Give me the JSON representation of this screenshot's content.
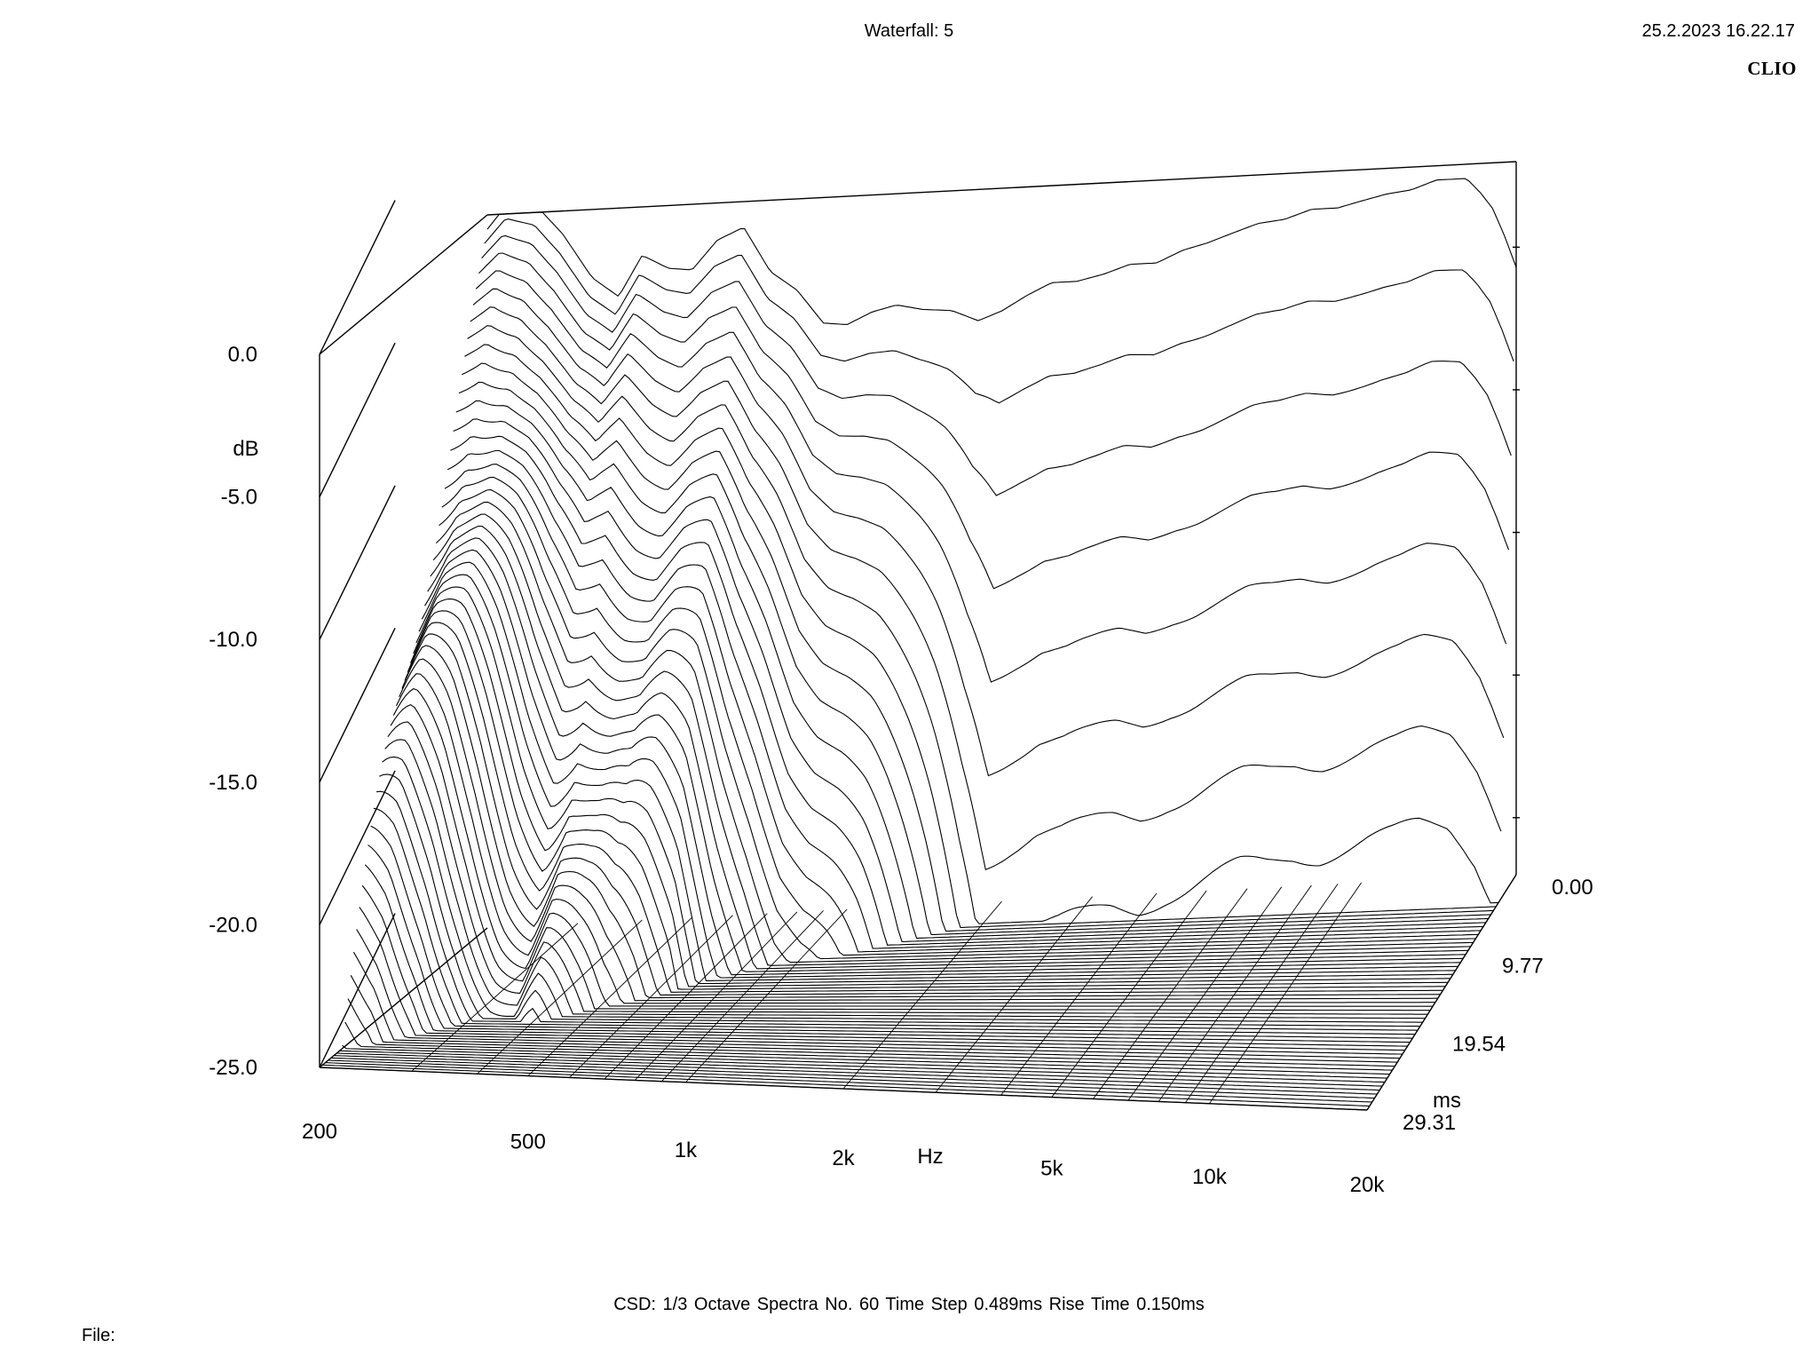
{
  "header": {
    "title": "Waterfall: 5",
    "datetime": "25.2.2023 16.22.17",
    "brand": "CLIO"
  },
  "footer": {
    "settings": "CSD:   1/3 Octave   Spectra No. 60   Time Step 0.489ms   Rise Time 0.150ms",
    "file_label": "File:"
  },
  "chart_data": {
    "type": "waterfall",
    "title": "Waterfall: 5",
    "xlabel": "Hz",
    "ylabel": "dB",
    "zlabel": "ms",
    "x_scale": "log",
    "x_ticks": [
      "200",
      "500",
      "1k",
      "2k",
      "5k",
      "10k",
      "20k"
    ],
    "x_tick_values": [
      200,
      500,
      1000,
      2000,
      5000,
      10000,
      20000
    ],
    "xlim": [
      200,
      20000
    ],
    "y_ticks": [
      "0.0",
      "-5.0",
      "-10.0",
      "-15.0",
      "-20.0",
      "-25.0"
    ],
    "ylim": [
      -25,
      0
    ],
    "z_ticks": [
      "0.00",
      "9.77",
      "19.54",
      "29.31"
    ],
    "zlim": [
      0,
      29.31
    ],
    "spectra_count": 60,
    "time_step_ms": 0.489,
    "rise_time_ms": 0.15,
    "smoothing": "1/3 Octave",
    "line_color": "#000000",
    "background_color": "#ffffff",
    "first_spectrum": {
      "freq_hz": [
        200,
        220,
        250,
        280,
        320,
        360,
        400,
        450,
        500,
        560,
        630,
        710,
        800,
        900,
        1000,
        1120,
        1250,
        1400,
        1600,
        1800,
        2000,
        2240,
        2500,
        2800,
        3150,
        3550,
        4000,
        4500,
        5000,
        5600,
        6300,
        7100,
        8000,
        9000,
        10000,
        11200,
        12500,
        14000,
        16000,
        17000,
        18000,
        19000,
        20000
      ],
      "level_db": [
        -0.5,
        0.4,
        0.2,
        -0.8,
        -2.4,
        -3.1,
        -1.7,
        -2.2,
        -2.3,
        -1.3,
        -0.9,
        -2.5,
        -3.2,
        -4.4,
        -4.5,
        -4.1,
        -3.9,
        -4.1,
        -4.2,
        -4.6,
        -4.3,
        -3.8,
        -3.4,
        -3.4,
        -3.2,
        -2.9,
        -2.9,
        -2.5,
        -2.3,
        -2.0,
        -1.7,
        -1.6,
        -1.3,
        -1.3,
        -1.1,
        -0.9,
        -0.8,
        -0.5,
        -0.5,
        -1.0,
        -1.6,
        -2.6,
        -3.7
      ]
    }
  }
}
